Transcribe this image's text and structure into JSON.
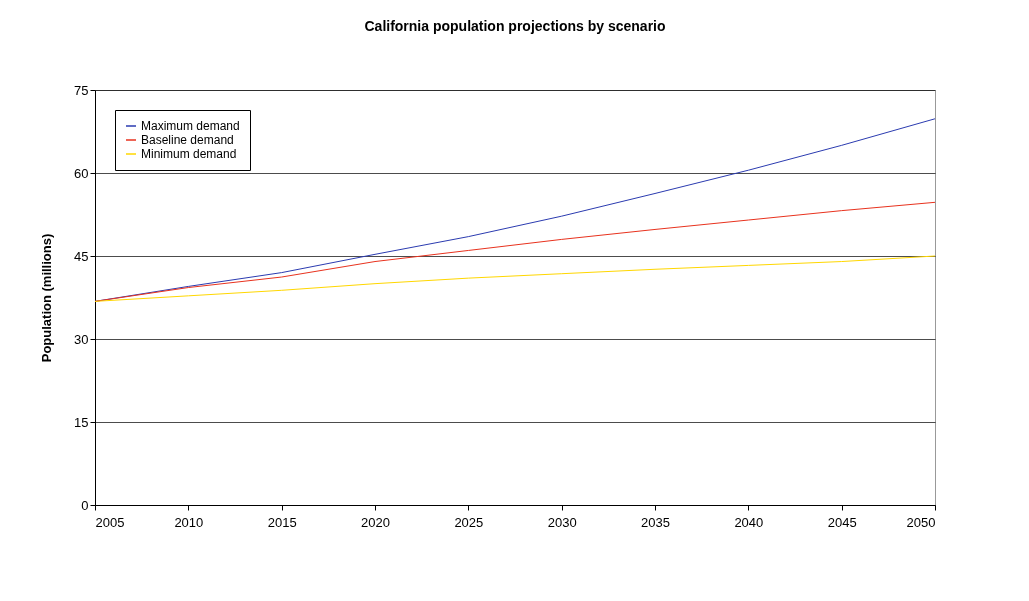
{
  "chart_data": {
    "type": "line",
    "title": "California population projections by scenario",
    "ylabel": "Population (millions)",
    "x": [
      2005,
      2010,
      2015,
      2020,
      2025,
      2030,
      2035,
      2040,
      2045,
      2050
    ],
    "series": [
      {
        "name": "Maximum demand",
        "color": "#2b3bb0",
        "values": [
          36.8,
          39.5,
          42.0,
          45.3,
          48.5,
          52.2,
          56.3,
          60.5,
          65.0,
          69.8
        ]
      },
      {
        "name": "Baseline demand",
        "color": "#e8321e",
        "values": [
          36.8,
          39.3,
          41.2,
          44.0,
          46.0,
          48.0,
          49.8,
          51.5,
          53.2,
          54.7
        ]
      },
      {
        "name": "Minimum demand",
        "color": "#ffd700",
        "values": [
          36.8,
          37.8,
          38.8,
          40.0,
          41.0,
          41.8,
          42.6,
          43.3,
          44.0,
          45.0
        ]
      }
    ],
    "xlim": [
      2005,
      2050
    ],
    "xticks": [
      2005,
      2010,
      2015,
      2020,
      2025,
      2030,
      2035,
      2040,
      2045,
      2050
    ],
    "ylim": [
      0,
      75
    ],
    "yticks": [
      0,
      15,
      30,
      45,
      60,
      75
    ],
    "grid": "y",
    "legend": "top left",
    "marker": "none",
    "line_style": "solid"
  }
}
